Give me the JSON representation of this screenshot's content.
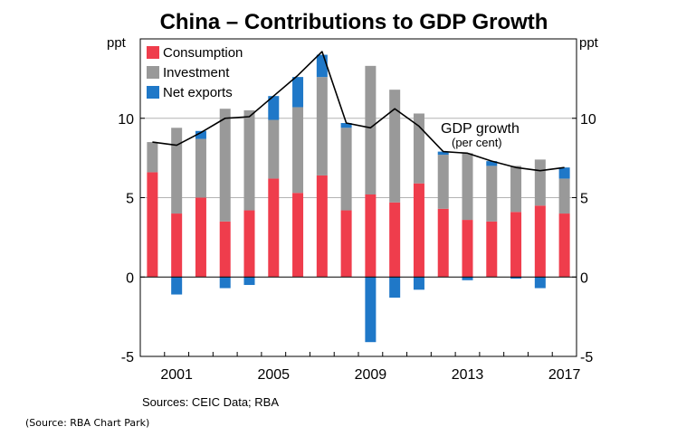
{
  "chart_data": {
    "type": "bar",
    "stacked": true,
    "title": "China – Contributions to GDP Growth",
    "ylabel_left": "ppt",
    "ylabel_right": "ppt",
    "ylim": [
      -5,
      15
    ],
    "yticks": [
      -5,
      0,
      5,
      10
    ],
    "x": [
      2000,
      2001,
      2002,
      2003,
      2004,
      2005,
      2006,
      2007,
      2008,
      2009,
      2010,
      2011,
      2012,
      2013,
      2014,
      2015,
      2016,
      2017
    ],
    "xtick_labels": [
      "2001",
      "2005",
      "2009",
      "2013",
      "2017"
    ],
    "xticks": [
      2001,
      2005,
      2009,
      2013,
      2017
    ],
    "series": [
      {
        "name": "Consumption",
        "color": "#ef3d4c",
        "values": [
          6.6,
          4.0,
          5.0,
          3.5,
          4.2,
          6.2,
          5.3,
          6.4,
          4.2,
          5.2,
          4.7,
          5.9,
          4.3,
          3.6,
          3.5,
          4.1,
          4.5,
          4.0
        ]
      },
      {
        "name": "Investment",
        "color": "#999999",
        "values": [
          1.9,
          5.4,
          3.7,
          7.1,
          6.3,
          3.7,
          5.4,
          6.2,
          5.2,
          8.1,
          7.1,
          4.4,
          3.4,
          4.2,
          3.5,
          2.9,
          2.9,
          2.2
        ]
      },
      {
        "name": "Net exports",
        "color": "#1f78c8",
        "values": [
          0.0,
          -1.1,
          0.5,
          -0.7,
          -0.5,
          1.5,
          1.9,
          1.4,
          0.3,
          -4.1,
          -1.3,
          -0.8,
          0.2,
          -0.2,
          0.3,
          -0.1,
          -0.7,
          0.7
        ]
      }
    ],
    "line": {
      "name": "GDP growth",
      "sublabel": "(per cent)",
      "color": "#000000",
      "values": [
        8.5,
        8.3,
        9.1,
        10.0,
        10.1,
        11.4,
        12.7,
        14.2,
        9.7,
        9.4,
        10.6,
        9.5,
        7.9,
        7.8,
        7.3,
        6.9,
        6.7,
        6.9
      ]
    },
    "grid": true,
    "legend": "top-left",
    "source": "Sources: CEIC Data; RBA"
  },
  "footnote": "(Source: RBA Chart Park)"
}
